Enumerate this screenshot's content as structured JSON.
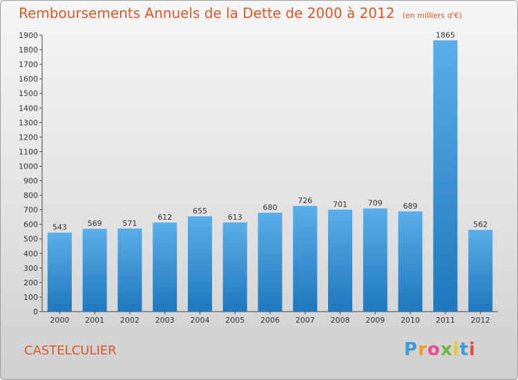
{
  "chart_data": {
    "type": "bar",
    "title": "Remboursements Annuels de la Dette de 2000 à 2012",
    "unit": "(en milliers d'€)",
    "categories": [
      "2000",
      "2001",
      "2002",
      "2003",
      "2004",
      "2005",
      "2006",
      "2007",
      "2008",
      "2009",
      "2010",
      "2011",
      "2012"
    ],
    "values": [
      543,
      569,
      571,
      612,
      655,
      613,
      680,
      726,
      701,
      709,
      689,
      1865,
      562
    ],
    "ylim": [
      0,
      1900
    ],
    "yticks": [
      0,
      100,
      200,
      300,
      400,
      500,
      600,
      700,
      800,
      900,
      1000,
      1100,
      1200,
      1300,
      1400,
      1500,
      1600,
      1700,
      1800,
      1900
    ],
    "grid": false,
    "xlabel": "",
    "ylabel": ""
  },
  "town": "CASTELCULIER",
  "logo": {
    "letters": [
      "P",
      "r",
      "o",
      "x",
      "i",
      "t",
      "i"
    ],
    "colors": [
      "#3a9bd6",
      "#f29a1d",
      "#e84a8a",
      "#6fb43f",
      "#f2c21d",
      "#3a9bd6",
      "#e84a3a"
    ]
  },
  "colors": {
    "bar_light": "#5aaee8",
    "bar_dark": "#1f78bd",
    "accent": "#d9582a"
  }
}
